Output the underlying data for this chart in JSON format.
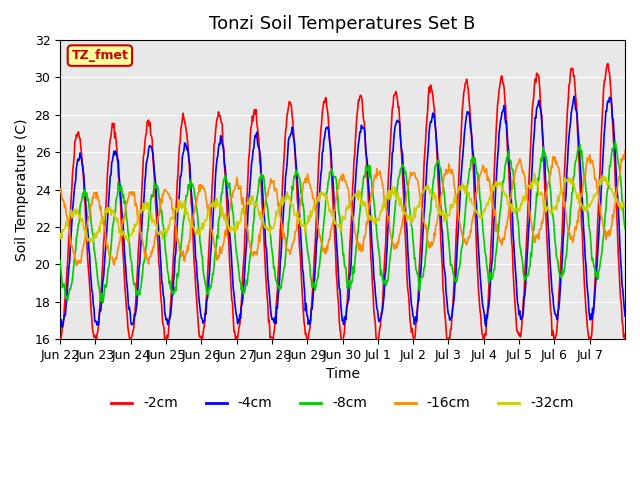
{
  "title": "Tonzi Soil Temperatures Set B",
  "xlabel": "Time",
  "ylabel": "Soil Temperature (C)",
  "ylim": [
    16,
    32
  ],
  "yticks": [
    16,
    18,
    20,
    22,
    24,
    26,
    28,
    30,
    32
  ],
  "xtick_labels": [
    "Jun 22",
    "Jun 23",
    "Jun 24",
    "Jun 25",
    "Jun 26",
    "Jun 27",
    "Jun 28",
    "Jun 29",
    "Jun 30",
    "Jul 1",
    "Jul 2",
    "Jul 3",
    "Jul 4",
    "Jul 5",
    "Jul 6",
    "Jul 7"
  ],
  "annotation_text": "TZ_fmet",
  "annotation_bg": "#ffff99",
  "annotation_edge": "#cc0000",
  "bg_color": "#e8e8e8",
  "fig_bg": "#ffffff",
  "line_colors": [
    "#ff0000",
    "#0000ff",
    "#00cc00",
    "#ff8800",
    "#cccc00"
  ],
  "line_labels": [
    "-2cm",
    "-4cm",
    "-8cm",
    "-16cm",
    "-32cm"
  ],
  "line_width": 1.2,
  "title_fontsize": 13,
  "label_fontsize": 10,
  "tick_fontsize": 9
}
